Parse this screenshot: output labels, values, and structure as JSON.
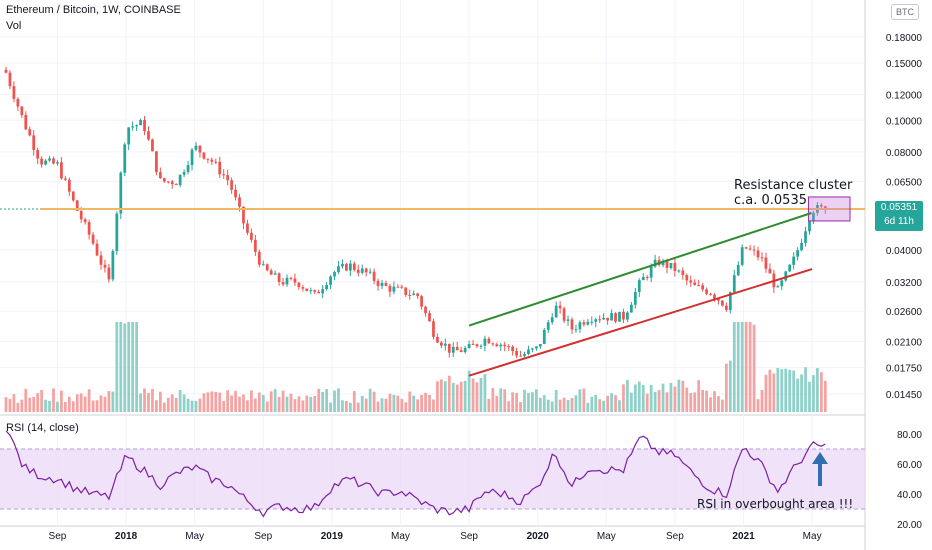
{
  "header": {
    "title": "Ethereum / Bitcoin, 1W, COINBASE",
    "volume_label": "Vol",
    "currency_badge": "BTC"
  },
  "rsi_panel": {
    "label": "RSI (14, close)"
  },
  "last_price": {
    "value": "0.05351",
    "countdown": "6d 11h"
  },
  "annotations": {
    "resistance_line1": "Resistance cluster",
    "resistance_line2": "c.a. 0.0535",
    "rsi_note": "RSI in overbought area !!!"
  },
  "colors": {
    "up": "#26a69a",
    "down": "#ef5350",
    "resistance_line": "#f0b860",
    "upper_channel": "#2e8b2e",
    "lower_channel": "#d32f2f",
    "rsi_line": "#7b1fa2",
    "rsi_band": "#e9d6f7",
    "arrow": "#2f6fb0",
    "resistance_box": "#c77dd9"
  },
  "chart_data": [
    {
      "type": "candlestick",
      "title": "Ethereum / Bitcoin, 1W, COINBASE",
      "scale": "log",
      "price_axis_ticks": [
        "0.18000",
        "0.15000",
        "0.12000",
        "0.10000",
        "0.08000",
        "0.06500",
        "0.05351",
        "0.04000",
        "0.03200",
        "0.02600",
        "0.02100",
        "0.01750",
        "0.01450"
      ],
      "time_axis_ticks": [
        "Sep",
        "2018",
        "May",
        "Sep",
        "2019",
        "May",
        "Sep",
        "2020",
        "May",
        "Sep",
        "2021",
        "May"
      ],
      "resistance_level": 0.0535,
      "upper_channel": [
        [
          "2019-09",
          0.0235
        ],
        [
          "2021-04",
          0.052
        ]
      ],
      "lower_channel": [
        [
          "2019-09",
          0.0165
        ],
        [
          "2021-05",
          0.035
        ]
      ],
      "close_series": [
        [
          "2017-06",
          0.14
        ],
        [
          "2017-07",
          0.1
        ],
        [
          "2017-08",
          0.075
        ],
        [
          "2017-09",
          0.073
        ],
        [
          "2017-10",
          0.055
        ],
        [
          "2017-11",
          0.043
        ],
        [
          "2017-12",
          0.032
        ],
        [
          "2018-01",
          0.095
        ],
        [
          "2018-02",
          0.098
        ],
        [
          "2018-03",
          0.065
        ],
        [
          "2018-04",
          0.065
        ],
        [
          "2018-05",
          0.083
        ],
        [
          "2018-06",
          0.075
        ],
        [
          "2018-07",
          0.065
        ],
        [
          "2018-08",
          0.046
        ],
        [
          "2018-09",
          0.035
        ],
        [
          "2018-10",
          0.032
        ],
        [
          "2018-11",
          0.032
        ],
        [
          "2018-12",
          0.029
        ],
        [
          "2019-01",
          0.034
        ],
        [
          "2019-02",
          0.036
        ],
        [
          "2019-03",
          0.034
        ],
        [
          "2019-04",
          0.031
        ],
        [
          "2019-05",
          0.03
        ],
        [
          "2019-06",
          0.029
        ],
        [
          "2019-07",
          0.022
        ],
        [
          "2019-08",
          0.0195
        ],
        [
          "2019-09",
          0.02
        ],
        [
          "2019-10",
          0.0215
        ],
        [
          "2019-11",
          0.0205
        ],
        [
          "2019-12",
          0.019
        ],
        [
          "2020-01",
          0.02
        ],
        [
          "2020-02",
          0.027
        ],
        [
          "2020-03",
          0.023
        ],
        [
          "2020-04",
          0.025
        ],
        [
          "2020-05",
          0.025
        ],
        [
          "2020-06",
          0.025
        ],
        [
          "2020-07",
          0.032
        ],
        [
          "2020-08",
          0.037
        ],
        [
          "2020-09",
          0.035
        ],
        [
          "2020-10",
          0.031
        ],
        [
          "2020-11",
          0.03
        ],
        [
          "2020-12",
          0.027
        ],
        [
          "2021-01",
          0.041
        ],
        [
          "2021-02",
          0.038
        ],
        [
          "2021-03",
          0.03
        ],
        [
          "2021-04",
          0.038
        ],
        [
          "2021-05",
          0.0535
        ]
      ],
      "volume_notes": "volume histogram shown under price; peaks around 2018-01 and 2021-01"
    },
    {
      "type": "line",
      "title": "RSI (14, close)",
      "y_axis_ticks": [
        "80.00",
        "60.00",
        "40.00",
        "20.00"
      ],
      "bands": [
        30,
        70
      ],
      "series": [
        {
          "values": [
            [
              "2017-06",
              85
            ],
            [
              "2017-07",
              58
            ],
            [
              "2017-08",
              52
            ],
            [
              "2017-09",
              50
            ],
            [
              "2017-10",
              44
            ],
            [
              "2017-11",
              40
            ],
            [
              "2017-12",
              38
            ],
            [
              "2018-01",
              65
            ],
            [
              "2018-02",
              56
            ],
            [
              "2018-03",
              46
            ],
            [
              "2018-04",
              54
            ],
            [
              "2018-05",
              58
            ],
            [
              "2018-06",
              50
            ],
            [
              "2018-07",
              46
            ],
            [
              "2018-08",
              36
            ],
            [
              "2018-09",
              28
            ],
            [
              "2018-10",
              32
            ],
            [
              "2018-11",
              30
            ],
            [
              "2018-12",
              31
            ],
            [
              "2019-01",
              45
            ],
            [
              "2019-02",
              50
            ],
            [
              "2019-03",
              45
            ],
            [
              "2019-04",
              40
            ],
            [
              "2019-05",
              42
            ],
            [
              "2019-06",
              36
            ],
            [
              "2019-07",
              30
            ],
            [
              "2019-08",
              28
            ],
            [
              "2019-09",
              30
            ],
            [
              "2019-10",
              42
            ],
            [
              "2019-11",
              40
            ],
            [
              "2019-12",
              35
            ],
            [
              "2020-01",
              45
            ],
            [
              "2020-02",
              68
            ],
            [
              "2020-03",
              45
            ],
            [
              "2020-04",
              58
            ],
            [
              "2020-05",
              56
            ],
            [
              "2020-06",
              56
            ],
            [
              "2020-07",
              78
            ],
            [
              "2020-08",
              68
            ],
            [
              "2020-09",
              66
            ],
            [
              "2020-10",
              54
            ],
            [
              "2020-11",
              44
            ],
            [
              "2020-12",
              40
            ],
            [
              "2021-01",
              72
            ],
            [
              "2021-02",
              60
            ],
            [
              "2021-03",
              42
            ],
            [
              "2021-04",
              58
            ],
            [
              "2021-05",
              72
            ]
          ]
        }
      ]
    }
  ]
}
